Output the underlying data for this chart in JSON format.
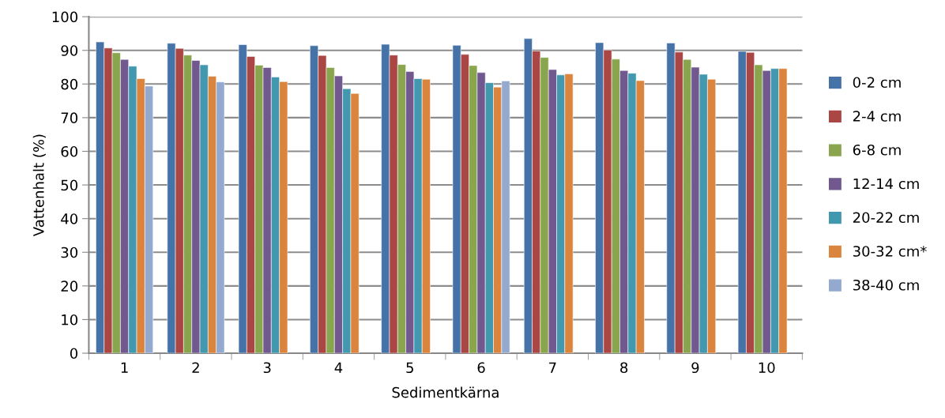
{
  "chart_data": {
    "type": "bar",
    "xlabel": "Sedimentkärna",
    "ylabel": "Vattenhalt (%)",
    "categories": [
      "1",
      "2",
      "3",
      "4",
      "5",
      "6",
      "7",
      "8",
      "9",
      "10"
    ],
    "series": [
      {
        "name": "0-2 cm",
        "color": "#4572a7",
        "values": [
          92.5,
          92.1,
          91.7,
          91.4,
          91.8,
          91.5,
          93.5,
          92.3,
          92.2,
          89.7
        ]
      },
      {
        "name": "2-4 cm",
        "color": "#aa4643",
        "values": [
          90.7,
          90.6,
          88.2,
          88.5,
          88.6,
          88.8,
          89.8,
          90.1,
          89.5,
          89.4
        ]
      },
      {
        "name": "6-8 cm",
        "color": "#89a54e",
        "values": [
          89.3,
          88.6,
          85.6,
          84.9,
          85.8,
          85.5,
          87.9,
          87.4,
          87.3,
          85.7
        ]
      },
      {
        "name": "12-14 cm",
        "color": "#71588f",
        "values": [
          87.3,
          87.0,
          84.9,
          82.4,
          83.7,
          83.4,
          84.3,
          84.0,
          85.0,
          84.0
        ]
      },
      {
        "name": "20-22 cm",
        "color": "#4198af",
        "values": [
          85.3,
          85.7,
          82.1,
          78.6,
          81.6,
          80.4,
          82.7,
          83.2,
          82.9,
          84.6
        ]
      },
      {
        "name": "30-32 cm*",
        "color": "#db843d",
        "values": [
          81.6,
          82.3,
          80.7,
          77.2,
          81.4,
          79.1,
          83.0,
          81.0,
          81.4,
          84.6
        ]
      },
      {
        "name": "38-40 cm",
        "color": "#93a9cf",
        "values": [
          79.4,
          80.6,
          null,
          null,
          null,
          80.9,
          null,
          null,
          null,
          null
        ]
      }
    ],
    "ylim": [
      0,
      100
    ],
    "yticks": [
      0,
      10,
      20,
      30,
      40,
      50,
      60,
      70,
      80,
      90,
      100
    ],
    "grid": "y",
    "legend": "right"
  }
}
